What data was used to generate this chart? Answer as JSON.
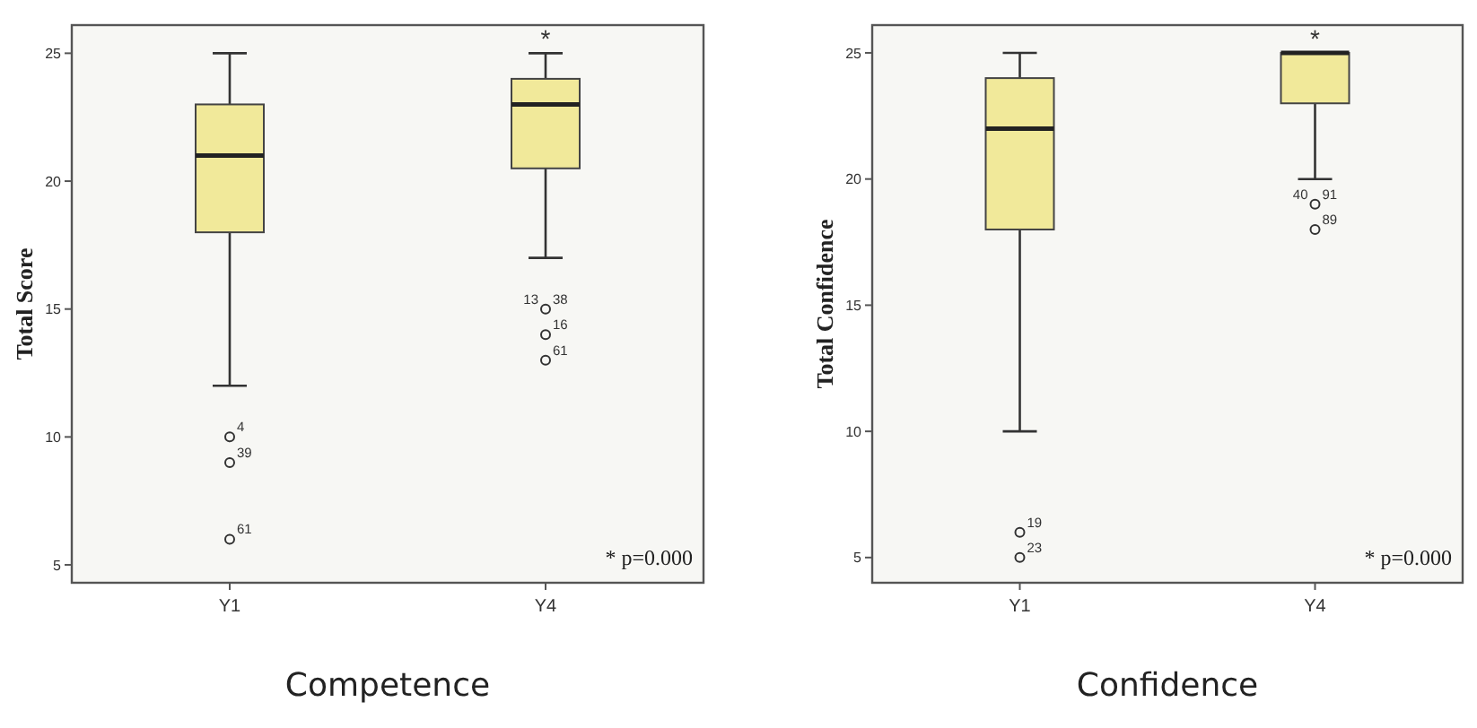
{
  "chart_data": [
    {
      "type": "box",
      "title": "Competence",
      "ylabel": "Total Score",
      "categories": [
        "Y1",
        "Y4"
      ],
      "ylim": [
        4.3,
        26.1
      ],
      "yticks": [
        5,
        10,
        15,
        20,
        25
      ],
      "color": "#f1e99a",
      "grid": false,
      "marker": "circle",
      "boxes": [
        {
          "low": 12,
          "q1": 18,
          "median": 21,
          "q3": 23,
          "high": 25
        },
        {
          "low": 17,
          "q1": 20.5,
          "median": 23,
          "q3": 24,
          "high": 25
        }
      ],
      "series": [
        {
          "type": "scatter",
          "color": "#333333",
          "x": [
            "Y1",
            "Y1",
            "Y1",
            "Y4",
            "Y4",
            "Y4"
          ],
          "values": [
            10,
            9,
            6,
            15,
            14,
            13
          ]
        }
      ],
      "annotations": [
        {
          "text": "4",
          "x": "Y1",
          "y": 10
        },
        {
          "text": "39",
          "x": "Y1",
          "y": 9
        },
        {
          "text": "61",
          "x": "Y1",
          "y": 6
        },
        {
          "text": "13",
          "x": "Y4",
          "y": 15
        },
        {
          "text": "38",
          "x": "Y4",
          "y": 15
        },
        {
          "text": "16",
          "x": "Y4",
          "y": 14
        },
        {
          "text": "61",
          "x": "Y4",
          "y": 13
        },
        {
          "text": "*",
          "x": "Y4",
          "y": 25
        },
        "* p=0.000"
      ]
    },
    {
      "type": "box",
      "title": "Confidence",
      "ylabel": "Total Confidence",
      "categories": [
        "Y1",
        "Y4"
      ],
      "ylim": [
        4,
        26.1
      ],
      "yticks": [
        5,
        10,
        15,
        20,
        25
      ],
      "color": "#f1e99a",
      "grid": false,
      "marker": "circle",
      "boxes": [
        {
          "low": 10,
          "q1": 18,
          "median": 22,
          "q3": 24,
          "high": 25
        },
        {
          "low": 20,
          "q1": 23,
          "median": 25,
          "q3": 25,
          "high": 25
        }
      ],
      "series": [
        {
          "type": "scatter",
          "color": "#333333",
          "x": [
            "Y1",
            "Y1",
            "Y4",
            "Y4"
          ],
          "values": [
            6,
            5,
            19,
            18
          ]
        }
      ],
      "annotations": [
        {
          "text": "19",
          "x": "Y1",
          "y": 6
        },
        {
          "text": "23",
          "x": "Y1",
          "y": 5
        },
        {
          "text": "40",
          "x": "Y4",
          "y": 19
        },
        {
          "text": "91",
          "x": "Y4",
          "y": 19
        },
        {
          "text": "89",
          "x": "Y4",
          "y": 18
        },
        {
          "text": "*",
          "x": "Y4",
          "y": 25
        },
        "* p=0.000"
      ]
    }
  ]
}
